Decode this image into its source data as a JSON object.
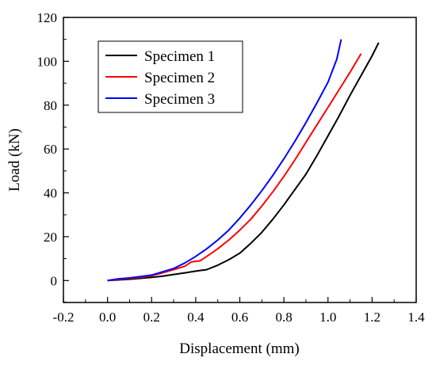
{
  "chart_data": {
    "type": "line",
    "title": "",
    "xlabel": "Displacement (mm)",
    "ylabel": "Load (kN)",
    "xlim": [
      -0.2,
      1.4
    ],
    "ylim": [
      -10,
      120
    ],
    "x_ticks": [
      "-0.2",
      "0.0",
      "0.2",
      "0.4",
      "0.6",
      "0.8",
      "1.0",
      "1.2",
      "1.4"
    ],
    "y_ticks": [
      "0",
      "20",
      "40",
      "60",
      "80",
      "100",
      "120"
    ],
    "grid": false,
    "legend_position": "top-left",
    "series": [
      {
        "name": "Specimen 1",
        "color": "#000000",
        "points": [
          [
            0.0,
            0
          ],
          [
            0.05,
            0.3
          ],
          [
            0.1,
            0.6
          ],
          [
            0.15,
            1.0
          ],
          [
            0.2,
            1.5
          ],
          [
            0.25,
            2.0
          ],
          [
            0.3,
            2.8
          ],
          [
            0.35,
            3.5
          ],
          [
            0.4,
            4.3
          ],
          [
            0.45,
            5.0
          ],
          [
            0.5,
            7.0
          ],
          [
            0.55,
            9.5
          ],
          [
            0.6,
            12.5
          ],
          [
            0.65,
            17.0
          ],
          [
            0.7,
            22.0
          ],
          [
            0.75,
            28.0
          ],
          [
            0.8,
            34.5
          ],
          [
            0.85,
            41.5
          ],
          [
            0.9,
            48.5
          ],
          [
            0.95,
            57.0
          ],
          [
            1.0,
            66.0
          ],
          [
            1.05,
            75.0
          ],
          [
            1.1,
            84.5
          ],
          [
            1.15,
            93.5
          ],
          [
            1.2,
            102.5
          ],
          [
            1.23,
            108.5
          ]
        ]
      },
      {
        "name": "Specimen 2",
        "color": "#ff0000",
        "points": [
          [
            0.0,
            0
          ],
          [
            0.05,
            0.5
          ],
          [
            0.1,
            1.0
          ],
          [
            0.15,
            1.5
          ],
          [
            0.2,
            2.2
          ],
          [
            0.25,
            3.5
          ],
          [
            0.3,
            5.0
          ],
          [
            0.35,
            6.5
          ],
          [
            0.38,
            8.5
          ],
          [
            0.42,
            9.0
          ],
          [
            0.45,
            11.0
          ],
          [
            0.5,
            14.5
          ],
          [
            0.55,
            18.5
          ],
          [
            0.6,
            23.0
          ],
          [
            0.65,
            28.0
          ],
          [
            0.7,
            34.0
          ],
          [
            0.75,
            40.5
          ],
          [
            0.8,
            47.5
          ],
          [
            0.85,
            55.0
          ],
          [
            0.9,
            63.0
          ],
          [
            0.95,
            71.0
          ],
          [
            1.0,
            79.0
          ],
          [
            1.05,
            87.0
          ],
          [
            1.1,
            95.0
          ],
          [
            1.15,
            103.5
          ]
        ]
      },
      {
        "name": "Specimen 3",
        "color": "#0000ff",
        "points": [
          [
            0.0,
            0
          ],
          [
            0.05,
            0.8
          ],
          [
            0.1,
            1.2
          ],
          [
            0.15,
            1.8
          ],
          [
            0.2,
            2.5
          ],
          [
            0.25,
            4.0
          ],
          [
            0.3,
            5.5
          ],
          [
            0.35,
            8.0
          ],
          [
            0.4,
            11.0
          ],
          [
            0.45,
            14.5
          ],
          [
            0.5,
            18.5
          ],
          [
            0.55,
            23.0
          ],
          [
            0.6,
            28.5
          ],
          [
            0.65,
            34.5
          ],
          [
            0.7,
            41.0
          ],
          [
            0.75,
            48.0
          ],
          [
            0.8,
            55.5
          ],
          [
            0.85,
            63.5
          ],
          [
            0.9,
            72.0
          ],
          [
            0.95,
            81.0
          ],
          [
            1.0,
            90.5
          ],
          [
            1.04,
            101.0
          ],
          [
            1.06,
            110.0
          ]
        ]
      }
    ]
  }
}
